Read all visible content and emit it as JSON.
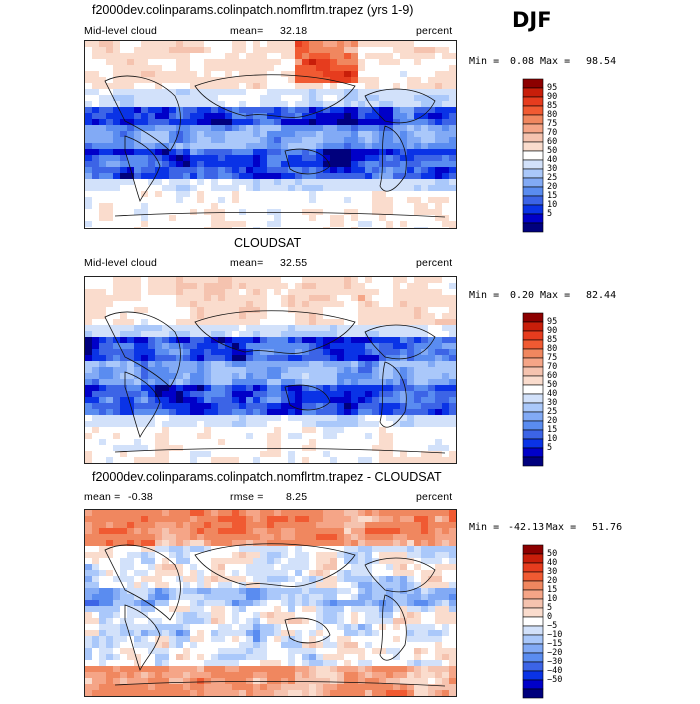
{
  "season": "DJF",
  "colors": {
    "seq": [
      "#00007d",
      "#0000c8",
      "#0a33e6",
      "#3c64e6",
      "#5a8cf0",
      "#82aaf5",
      "#aac8fa",
      "#d2e1fa",
      "#ffffff",
      "#fadccd",
      "#f5c3af",
      "#f5a587",
      "#f0875f",
      "#f05a32",
      "#e63c1e",
      "#c81e0a",
      "#8c0000"
    ],
    "diff": [
      "#00007d",
      "#0000c8",
      "#0a33e6",
      "#3c64e6",
      "#5a8cf0",
      "#82aaf5",
      "#aac8fa",
      "#d2e1fa",
      "#ffffff",
      "#fadccd",
      "#f5c3af",
      "#f5a587",
      "#f0875f",
      "#f05a32",
      "#e63c1e",
      "#c81e0a",
      "#8c0000"
    ]
  },
  "panels": [
    {
      "title": "f2000dev.colinparams.colinpatch.nomflrtm.trapez (yrs 1-9)",
      "left_label": "Mid-level cloud",
      "mean_label": "mean=",
      "mean_value": "32.18",
      "units": "percent",
      "min_label": "Min =",
      "min_value": "0.08",
      "max_label": "Max =",
      "max_value": "98.54",
      "colorbar_ticks": [
        "95",
        "90",
        "85",
        "80",
        "75",
        "70",
        "60",
        "50",
        "40",
        "30",
        "25",
        "20",
        "15",
        "10",
        "5"
      ],
      "kind": "model"
    },
    {
      "title": "CLOUDSAT",
      "left_label": "Mid-level cloud",
      "mean_label": "mean=",
      "mean_value": "32.55",
      "units": "percent",
      "min_label": "Min =",
      "min_value": "0.20",
      "max_label": "Max =",
      "max_value": "82.44",
      "colorbar_ticks": [
        "95",
        "90",
        "85",
        "80",
        "75",
        "70",
        "60",
        "50",
        "40",
        "30",
        "25",
        "20",
        "15",
        "10",
        "5"
      ],
      "kind": "obs"
    },
    {
      "title": "f2000dev.colinparams.colinpatch.nomflrtm.trapez - CLOUDSAT",
      "left_label": "mean =",
      "mean_label": "",
      "mean_value": "-0.38",
      "rmse_label": "rmse =",
      "rmse_value": "8.25",
      "units": "percent",
      "min_label": "Min =",
      "min_value": "-42.13",
      "max_label": "Max =",
      "max_value": "51.76",
      "colorbar_ticks": [
        "50",
        "40",
        "30",
        "20",
        "15",
        "10",
        "5",
        "0",
        "−5",
        "−10",
        "−15",
        "−20",
        "−30",
        "−40",
        "−50"
      ],
      "kind": "diff"
    }
  ],
  "chart_data": [
    {
      "type": "heatmap",
      "title": "f2000dev.colinparams.colinpatch.nomflrtm.trapez (yrs 1-9)",
      "variable": "Mid-level cloud",
      "units": "percent",
      "mean": 32.18,
      "min": 0.08,
      "max": 98.54,
      "contour_levels": [
        5,
        10,
        15,
        20,
        25,
        30,
        40,
        50,
        60,
        70,
        75,
        80,
        85,
        90,
        95
      ]
    },
    {
      "type": "heatmap",
      "title": "CLOUDSAT",
      "variable": "Mid-level cloud",
      "units": "percent",
      "mean": 32.55,
      "min": 0.2,
      "max": 82.44,
      "contour_levels": [
        5,
        10,
        15,
        20,
        25,
        30,
        40,
        50,
        60,
        70,
        75,
        80,
        85,
        90,
        95
      ]
    },
    {
      "type": "heatmap",
      "title": "f2000dev.colinparams.colinpatch.nomflrtm.trapez - CLOUDSAT",
      "units": "percent",
      "mean": -0.38,
      "rmse": 8.25,
      "min": -42.13,
      "max": 51.76,
      "contour_levels": [
        -50,
        -40,
        -30,
        -20,
        -15,
        -10,
        -5,
        0,
        5,
        10,
        15,
        20,
        30,
        40,
        50
      ]
    }
  ]
}
